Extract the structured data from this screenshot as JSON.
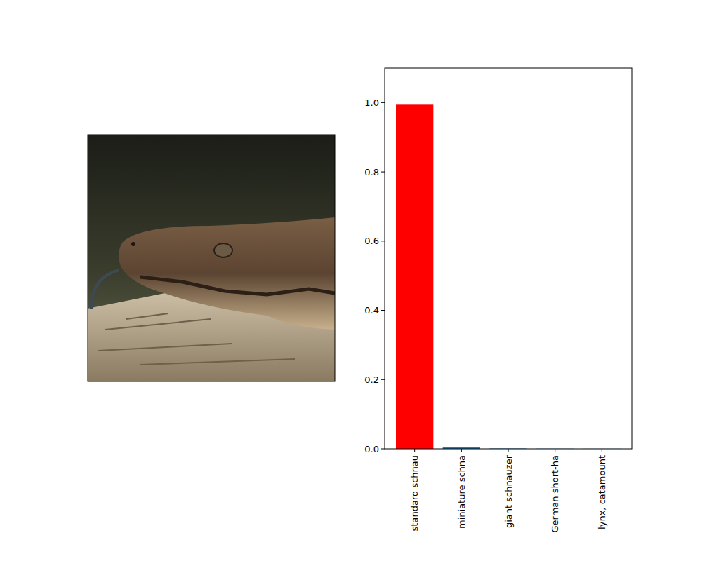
{
  "chart_data": {
    "type": "bar",
    "categories": [
      "standard schnau",
      "miniature schna",
      "giant schnauzer",
      "German short-ha",
      "lynx, catamount"
    ],
    "values": [
      0.994,
      0.004,
      0.001,
      0.0005,
      0.0003
    ],
    "colors": [
      "#ff0000",
      "#1f77b4",
      "#1f77b4",
      "#1f77b4",
      "#1f77b4"
    ],
    "ylim": [
      0,
      1.1
    ],
    "yticks": [
      {
        "value": 0,
        "label": "0.0"
      },
      0.2,
      0.4,
      0.6,
      0.8,
      {
        "value": 1,
        "label": "1.0"
      }
    ],
    "grid": false
  }
}
